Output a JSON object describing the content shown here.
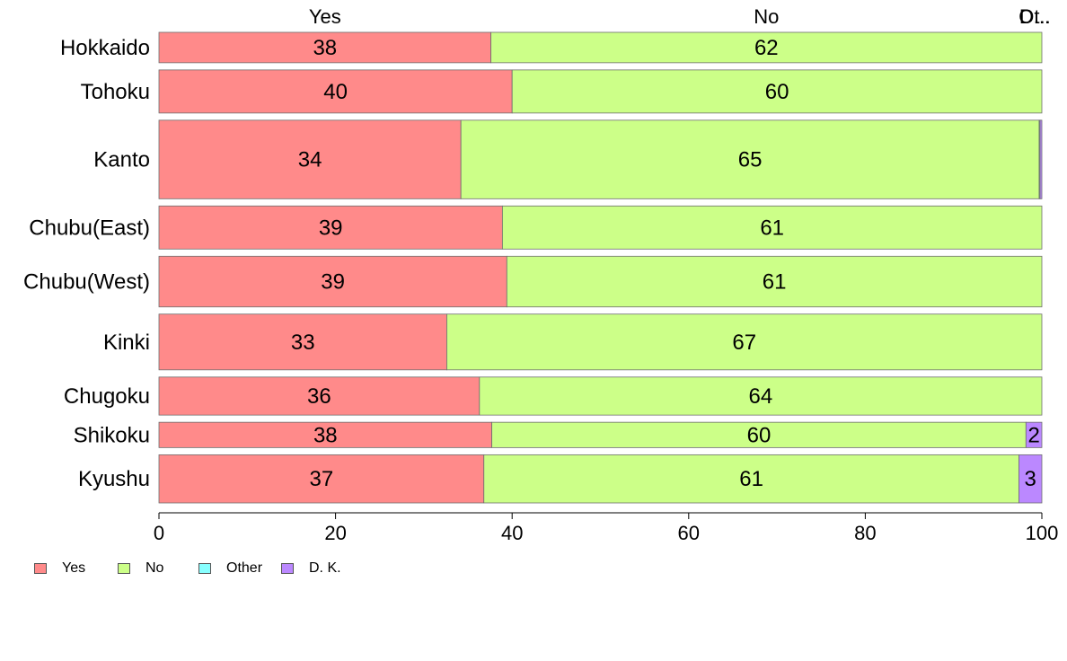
{
  "chart_data": {
    "type": "bar",
    "orientation": "horizontal",
    "stacked": true,
    "categories": [
      "Hokkaido",
      "Tohoku",
      "Kanto",
      "Chubu(East)",
      "Chubu(West)",
      "Kinki",
      "Chugoku",
      "Shikoku",
      "Kyushu"
    ],
    "bar_width_weights": [
      0.6,
      0.85,
      1.55,
      0.85,
      1.0,
      1.1,
      0.75,
      0.5,
      0.95
    ],
    "series": [
      {
        "name": "Yes",
        "color": "#ff8a8a",
        "values": [
          37.6,
          40.0,
          34.2,
          38.9,
          39.4,
          32.6,
          36.3,
          37.7,
          36.8
        ],
        "labels": [
          "38",
          "40",
          "34",
          "39",
          "39",
          "33",
          "36",
          "38",
          "37"
        ]
      },
      {
        "name": "No",
        "color": "#ccff88",
        "values": [
          62.4,
          60.0,
          65.5,
          61.1,
          60.6,
          67.4,
          63.7,
          60.5,
          60.6
        ],
        "labels": [
          "62",
          "60",
          "65",
          "61",
          "61",
          "67",
          "64",
          "60",
          "61"
        ]
      },
      {
        "name": "Other",
        "color": "#88ffff",
        "values": [
          0,
          0,
          0.1,
          0,
          0,
          0,
          0,
          0,
          0
        ],
        "labels": [
          "",
          "",
          "",
          "",
          "",
          "",
          "",
          "",
          ""
        ]
      },
      {
        "name": "D. K.",
        "color": "#bb88ff",
        "values": [
          0,
          0,
          0.2,
          0,
          0,
          0,
          0,
          1.8,
          2.6
        ],
        "labels": [
          "",
          "",
          "",
          "",
          "",
          "",
          "",
          "2",
          "3"
        ]
      }
    ],
    "top_labels": [
      "Yes",
      "No",
      "Ot..",
      "D..."
    ],
    "xlim": [
      0,
      100
    ],
    "xticks": [
      "0",
      "20",
      "40",
      "60",
      "80",
      "100"
    ],
    "legend_position": "bottom-left",
    "grid": false
  }
}
